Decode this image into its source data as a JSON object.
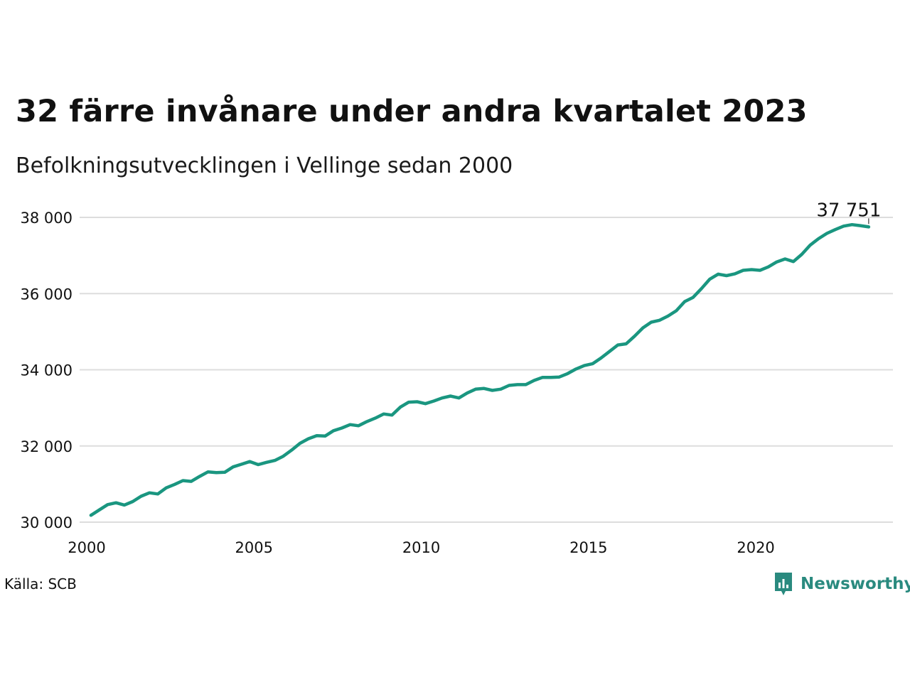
{
  "header": {
    "title": "32 färre invånare under andra kvartalet 2023",
    "subtitle": "Befolkningsutvecklingen i Vellinge sedan 2000"
  },
  "footer": {
    "source": "Källa: SCB",
    "brand": "Newsworthy",
    "brand_icon": "newsworthy-logo-icon"
  },
  "colors": {
    "line": "#1a9680",
    "grid": "#dddddd",
    "brand": "#2a8a7f"
  },
  "chart_data": {
    "type": "line",
    "title": "32 färre invånare under andra kvartalet 2023",
    "subtitle": "Befolkningsutvecklingen i Vellinge sedan 2000",
    "xlabel": "",
    "ylabel": "",
    "xlim": [
      2000,
      2024.1
    ],
    "ylim": [
      30000,
      38000
    ],
    "x_ticks": [
      2000,
      2005,
      2010,
      2015,
      2020
    ],
    "x_tick_labels": [
      "2000",
      "2005",
      "2010",
      "2015",
      "2020"
    ],
    "y_ticks": [
      30000,
      32000,
      34000,
      36000,
      38000
    ],
    "y_tick_labels": [
      "30 000",
      "32 000",
      "34 000",
      "36 000",
      "38 000"
    ],
    "grid": "horizontal",
    "legend": "none",
    "end_label": "37 751",
    "series": [
      {
        "x": [
          2000.125,
          2000.375,
          2000.625,
          2000.875,
          2001.125,
          2001.375,
          2001.625,
          2001.875,
          2002.125,
          2002.375,
          2002.625,
          2002.875,
          2003.125,
          2003.375,
          2003.625,
          2003.875,
          2004.125,
          2004.375,
          2004.625,
          2004.875,
          2005.125,
          2005.375,
          2005.625,
          2005.875,
          2006.125,
          2006.375,
          2006.625,
          2006.875,
          2007.125,
          2007.375,
          2007.625,
          2007.875,
          2008.125,
          2008.375,
          2008.625,
          2008.875,
          2009.125,
          2009.375,
          2009.625,
          2009.875,
          2010.125,
          2010.375,
          2010.625,
          2010.875,
          2011.125,
          2011.375,
          2011.625,
          2011.875,
          2012.125,
          2012.375,
          2012.625,
          2012.875,
          2013.125,
          2013.375,
          2013.625,
          2013.875,
          2014.125,
          2014.375,
          2014.625,
          2014.875,
          2015.125,
          2015.375,
          2015.625,
          2015.875,
          2016.125,
          2016.375,
          2016.625,
          2016.875,
          2017.125,
          2017.375,
          2017.625,
          2017.875,
          2018.125,
          2018.375,
          2018.625,
          2018.875,
          2019.125,
          2019.375,
          2019.625,
          2019.875,
          2020.125,
          2020.375,
          2020.625,
          2020.875,
          2021.125,
          2021.375,
          2021.625,
          2021.875,
          2022.125,
          2022.375,
          2022.625,
          2022.875,
          2023.125,
          2023.375
        ],
        "values": [
          30180,
          30320,
          30460,
          30510,
          30450,
          30540,
          30680,
          30770,
          30740,
          30900,
          30990,
          31090,
          31070,
          31200,
          31320,
          31300,
          31310,
          31450,
          31520,
          31590,
          31510,
          31570,
          31620,
          31730,
          31890,
          32070,
          32190,
          32270,
          32260,
          32400,
          32470,
          32560,
          32530,
          32640,
          32730,
          32840,
          32810,
          33020,
          33150,
          33160,
          33110,
          33180,
          33260,
          33310,
          33260,
          33390,
          33490,
          33510,
          33460,
          33490,
          33590,
          33610,
          33610,
          33720,
          33800,
          33800,
          33810,
          33900,
          34020,
          34110,
          34160,
          34310,
          34480,
          34650,
          34680,
          34880,
          35100,
          35250,
          35300,
          35410,
          35550,
          35790,
          35900,
          36130,
          36380,
          36510,
          36470,
          36520,
          36610,
          36630,
          36610,
          36700,
          36830,
          36910,
          36840,
          37030,
          37270,
          37440,
          37580,
          37680,
          37770,
          37810,
          37783,
          37751
        ]
      }
    ]
  }
}
